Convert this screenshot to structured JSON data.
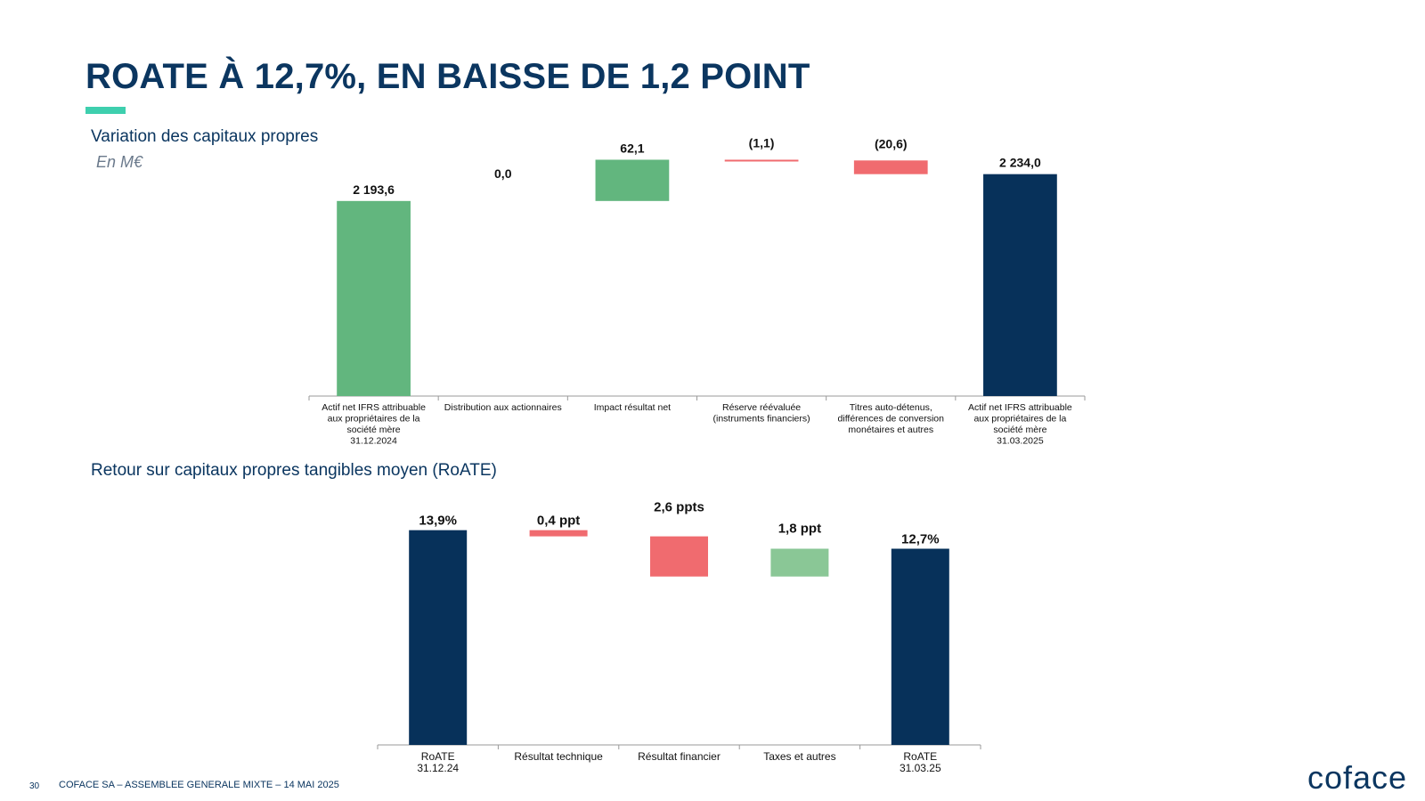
{
  "header": {
    "title": "ROATE À 12,7%, EN BAISSE DE 1,2 POINT"
  },
  "section1": {
    "title": "Variation des capitaux propres",
    "unit": "En M€"
  },
  "section2": {
    "title": "Retour sur capitaux propres tangibles moyen (RoATE)"
  },
  "colors": {
    "total_blue": "#07315a",
    "start_green": "#62b67e",
    "increase_green": "#62b67e",
    "decrease_red": "#f06b6f",
    "light_green": "#8ac796",
    "accent_teal": "#3ecfae"
  },
  "chart_data": [
    {
      "type": "waterfall",
      "categories": [
        "Actif net IFRS attribuable aux propriétaires de la société mère 31.12.2024",
        "Distribution aux actionnaires",
        "Impact résultat net",
        "Réserve réévaluée (instruments financiers)",
        "Titres auto-détenus, différences de conversion monétaires et autres",
        "Actif net IFRS attribuable aux propriétaires de la société mère 31.03.2025"
      ],
      "category_lines": [
        [
          "Actif net IFRS attribuable",
          "aux propriétaires de la",
          "société mère",
          "31.12.2024"
        ],
        [
          "Distribution aux actionnaires"
        ],
        [
          "Impact résultat net"
        ],
        [
          "Réserve réévaluée",
          "(instruments financiers)"
        ],
        [
          "Titres auto-détenus,",
          "différences de conversion",
          "monétaires et autres"
        ],
        [
          "Actif net IFRS attribuable",
          "aux propriétaires de la",
          "société mère",
          "31.03.2025"
        ]
      ],
      "steps": [
        {
          "kind": "total",
          "value": 2193.6,
          "label": "2 193,6",
          "color": "start_green"
        },
        {
          "kind": "delta",
          "value": 0.0,
          "label": "0,0",
          "color": "increase_green"
        },
        {
          "kind": "delta",
          "value": 62.1,
          "label": "62,1",
          "color": "increase_green"
        },
        {
          "kind": "delta",
          "value": -1.1,
          "label": "(1,1)",
          "color": "decrease_red"
        },
        {
          "kind": "delta",
          "value": -20.6,
          "label": "(20,6)",
          "color": "decrease_red"
        },
        {
          "kind": "total",
          "value": 2234.0,
          "label": "2 234,0",
          "color": "total_blue"
        }
      ],
      "unit": "En M€"
    },
    {
      "type": "waterfall",
      "categories": [
        "RoATE 31.12.24",
        "Résultat technique",
        "Résultat financier",
        "Taxes et autres",
        "RoATE 31.03.25"
      ],
      "category_lines": [
        [
          "RoATE",
          "31.12.24"
        ],
        [
          "Résultat technique"
        ],
        [
          "Résultat financier"
        ],
        [
          "Taxes et autres"
        ],
        [
          "RoATE",
          "31.03.25"
        ]
      ],
      "steps": [
        {
          "kind": "total",
          "value": 13.9,
          "label": "13,9%",
          "color": "total_blue"
        },
        {
          "kind": "delta",
          "value": -0.4,
          "label": "0,4 ppt",
          "color": "decrease_red"
        },
        {
          "kind": "delta",
          "value": -2.6,
          "label": "2,6 ppts",
          "color": "decrease_red"
        },
        {
          "kind": "delta",
          "value": 1.8,
          "label": "1,8 ppt",
          "color": "light_green"
        },
        {
          "kind": "total",
          "value": 12.7,
          "label": "12,7%",
          "color": "total_blue"
        }
      ],
      "unit": "%"
    }
  ],
  "footer": {
    "page_number": "30",
    "text": "COFACE SA – ASSEMBLEE GENERALE MIXTE – 14 MAI 2025",
    "logo": "coface"
  }
}
